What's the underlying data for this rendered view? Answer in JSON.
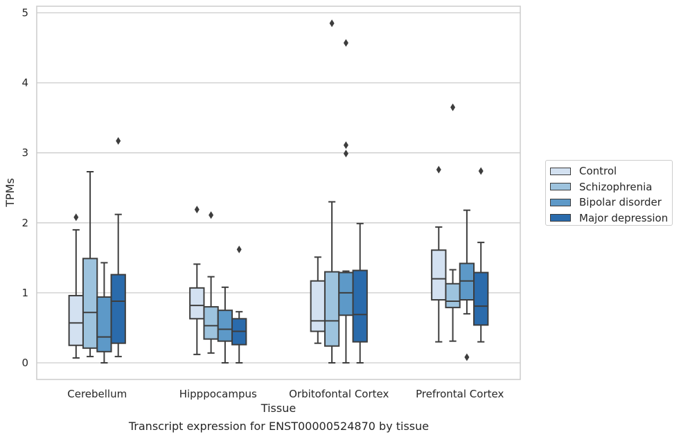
{
  "chart_data": {
    "type": "box",
    "title": "",
    "xlabel": "Tissue",
    "ylabel": "TPMs",
    "caption": "Transcript expression for ENST00000524870 by tissue",
    "ylim": [
      -0.23,
      5.1
    ],
    "yticks": [
      "0",
      "1",
      "2",
      "3",
      "4",
      "5"
    ],
    "grid": "horizontal",
    "legend_position": "right",
    "categories": [
      "Cerebellum",
      "Hipppocampus",
      "Orbitofontal Cortex",
      "Prefrontal Cortex"
    ],
    "series": [
      {
        "name": "Control",
        "color": "#d3e1f1",
        "boxes": [
          {
            "whislo": 0.07,
            "q1": 0.25,
            "med": 0.57,
            "q3": 0.96,
            "whishi": 1.9,
            "fliers": [
              2.08
            ]
          },
          {
            "whislo": 0.12,
            "q1": 0.63,
            "med": 0.82,
            "q3": 1.07,
            "whishi": 1.41,
            "fliers": [
              2.19
            ]
          },
          {
            "whislo": 0.28,
            "q1": 0.45,
            "med": 0.6,
            "q3": 1.17,
            "whishi": 1.51,
            "fliers": []
          },
          {
            "whislo": 0.3,
            "q1": 0.9,
            "med": 1.2,
            "q3": 1.61,
            "whishi": 1.94,
            "fliers": [
              2.76
            ]
          }
        ]
      },
      {
        "name": "Schizophrenia",
        "color": "#9dc3de",
        "boxes": [
          {
            "whislo": 0.09,
            "q1": 0.21,
            "med": 0.72,
            "q3": 1.49,
            "whishi": 2.73,
            "fliers": []
          },
          {
            "whislo": 0.14,
            "q1": 0.34,
            "med": 0.53,
            "q3": 0.8,
            "whishi": 1.23,
            "fliers": [
              2.11
            ]
          },
          {
            "whislo": 0.0,
            "q1": 0.24,
            "med": 0.6,
            "q3": 1.3,
            "whishi": 2.3,
            "fliers": [
              4.85
            ]
          },
          {
            "whislo": 0.31,
            "q1": 0.79,
            "med": 0.88,
            "q3": 1.13,
            "whishi": 1.33,
            "fliers": [
              3.65
            ]
          }
        ]
      },
      {
        "name": "Bipolar disorder",
        "color": "#5d99c8",
        "boxes": [
          {
            "whislo": 0.0,
            "q1": 0.16,
            "med": 0.37,
            "q3": 0.94,
            "whishi": 1.43,
            "fliers": []
          },
          {
            "whislo": 0.0,
            "q1": 0.31,
            "med": 0.48,
            "q3": 0.75,
            "whishi": 1.08,
            "fliers": []
          },
          {
            "whislo": 0.0,
            "q1": 0.68,
            "med": 1.0,
            "q3": 1.29,
            "whishi": 1.31,
            "fliers": [
              4.57,
              3.11,
              2.99
            ]
          },
          {
            "whislo": 0.7,
            "q1": 0.9,
            "med": 1.17,
            "q3": 1.42,
            "whishi": 2.18,
            "fliers": [
              0.08
            ]
          }
        ]
      },
      {
        "name": "Major depression",
        "color": "#2a6bac",
        "boxes": [
          {
            "whislo": 0.09,
            "q1": 0.28,
            "med": 0.88,
            "q3": 1.26,
            "whishi": 2.12,
            "fliers": [
              3.17
            ]
          },
          {
            "whislo": 0.0,
            "q1": 0.26,
            "med": 0.45,
            "q3": 0.63,
            "whishi": 0.73,
            "fliers": [
              1.62
            ]
          },
          {
            "whislo": 0.0,
            "q1": 0.3,
            "med": 0.69,
            "q3": 1.32,
            "whishi": 1.99,
            "fliers": []
          },
          {
            "whislo": 0.3,
            "q1": 0.54,
            "med": 0.81,
            "q3": 1.29,
            "whishi": 1.72,
            "fliers": [
              2.74
            ]
          }
        ]
      }
    ]
  }
}
